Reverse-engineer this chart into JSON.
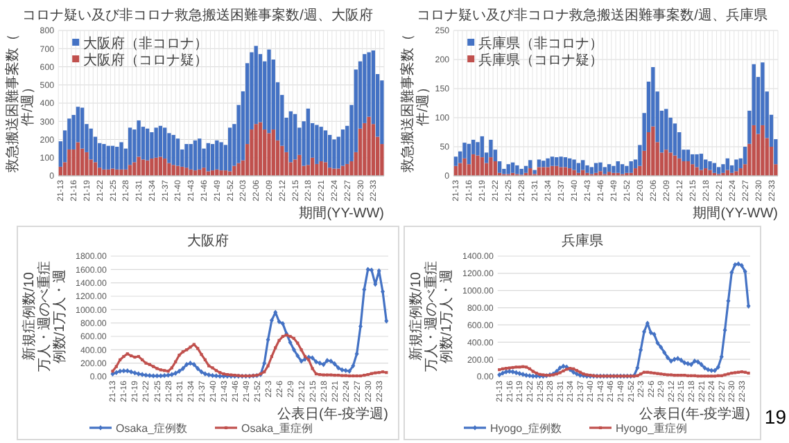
{
  "chart_data": [
    {
      "type": "bar",
      "stacked": true,
      "title": "コロナ疑い及び非コロナ救急搬送困難事案数/週、大阪府",
      "xlabel": "期間(YY-WW)",
      "ylabel": "救急搬送困難事案数（件/週）",
      "legend": "top left",
      "grid": true,
      "ylim": [
        0,
        800
      ],
      "yticks": [
        0,
        100,
        200,
        300,
        400,
        500,
        600,
        700,
        800
      ],
      "categories": [
        "21-13",
        null,
        null,
        "21-16",
        null,
        null,
        "21-19",
        null,
        null,
        "21-22",
        null,
        null,
        "21-25",
        null,
        null,
        "21-28",
        null,
        null,
        "21-31",
        null,
        null,
        "21-34",
        null,
        null,
        "21-37",
        null,
        null,
        "21-40",
        null,
        null,
        "21-43",
        null,
        null,
        "21-46",
        null,
        null,
        "21-49",
        null,
        null,
        "21-52",
        null,
        null,
        "22-03",
        null,
        null,
        "22-06",
        null,
        null,
        "22-09",
        null,
        null,
        "22-12",
        null,
        null,
        "22-15",
        null,
        null,
        "22-18",
        null,
        null,
        "22-21",
        null,
        null,
        "22-24",
        null,
        null,
        "22-27",
        null,
        null,
        "22-30",
        null,
        null,
        "22-33",
        null,
        null
      ],
      "series": [
        {
          "name": "大阪府（コロナ疑）",
          "color": "#c0504d",
          "values": [
            50,
            75,
            145,
            145,
            185,
            150,
            130,
            90,
            75,
            45,
            35,
            35,
            40,
            35,
            35,
            35,
            60,
            75,
            105,
            90,
            85,
            95,
            100,
            105,
            95,
            70,
            60,
            55,
            50,
            45,
            35,
            30,
            35,
            45,
            25,
            30,
            35,
            30,
            30,
            25,
            55,
            70,
            85,
            175,
            255,
            285,
            295,
            255,
            235,
            255,
            195,
            165,
            130,
            75,
            90,
            115,
            55,
            60,
            100,
            65,
            80,
            75,
            45,
            40,
            40,
            55,
            65,
            80,
            130,
            260,
            290,
            325,
            285,
            215,
            175
          ]
        },
        {
          "name": "大阪府（非コロナ）",
          "color": "#4472c4",
          "values": [
            140,
            175,
            170,
            190,
            195,
            225,
            155,
            170,
            140,
            135,
            140,
            130,
            125,
            125,
            150,
            115,
            205,
            180,
            200,
            180,
            175,
            145,
            165,
            170,
            170,
            165,
            165,
            150,
            95,
            130,
            140,
            165,
            170,
            105,
            155,
            145,
            160,
            155,
            140,
            240,
            230,
            320,
            380,
            445,
            425,
            430,
            375,
            375,
            460,
            385,
            320,
            280,
            190,
            280,
            250,
            150,
            245,
            310,
            190,
            215,
            190,
            175,
            180,
            160,
            175,
            200,
            210,
            310,
            455,
            370,
            380,
            355,
            405,
            345,
            350
          ]
        }
      ]
    },
    {
      "type": "bar",
      "stacked": true,
      "title": "コロナ疑い及び非コロナ救急搬送困難事案数/週、兵庫県",
      "xlabel": "期間(YY-WW)",
      "ylabel": "救急搬送困難事案数（件/週）",
      "legend": "top left",
      "grid": true,
      "ylim": [
        0,
        250
      ],
      "yticks": [
        0,
        50,
        100,
        150,
        200,
        250
      ],
      "categories": [
        "21-13",
        null,
        null,
        "21-16",
        null,
        null,
        "21-19",
        null,
        null,
        "21-22",
        null,
        null,
        "21-25",
        null,
        null,
        "21-28",
        null,
        null,
        "21-31",
        null,
        null,
        "21-34",
        null,
        null,
        "21-37",
        null,
        null,
        "21-40",
        null,
        null,
        "21-43",
        null,
        null,
        "21-46",
        null,
        null,
        "21-49",
        null,
        null,
        "21-52",
        null,
        null,
        "22-03",
        null,
        null,
        "22-06",
        null,
        null,
        "22-09",
        null,
        null,
        "22-12",
        null,
        null,
        "22-15",
        null,
        null,
        "22-18",
        null,
        null,
        "22-21",
        null,
        null,
        "22-24",
        null,
        null,
        "22-27",
        null,
        null,
        "22-30",
        null,
        null,
        "22-33",
        null
      ],
      "series": [
        {
          "name": "兵庫県（コロナ疑）",
          "color": "#c0504d",
          "values": [
            17,
            22,
            30,
            20,
            37,
            35,
            32,
            22,
            32,
            25,
            5,
            3,
            3,
            5,
            3,
            2,
            5,
            13,
            3,
            15,
            15,
            15,
            17,
            17,
            15,
            15,
            13,
            10,
            5,
            10,
            5,
            3,
            5,
            8,
            3,
            7,
            5,
            5,
            3,
            5,
            5,
            13,
            17,
            43,
            75,
            85,
            58,
            40,
            45,
            40,
            35,
            30,
            25,
            25,
            20,
            15,
            10,
            13,
            10,
            5,
            3,
            5,
            10,
            5,
            8,
            13,
            20,
            55,
            87,
            72,
            87,
            65,
            50,
            20
          ]
        },
        {
          "name": "兵庫県（非コロナ）",
          "color": "#4472c4",
          "values": [
            16,
            20,
            27,
            35,
            25,
            23,
            36,
            18,
            30,
            20,
            20,
            9,
            17,
            18,
            15,
            10,
            12,
            14,
            7,
            13,
            11,
            15,
            16,
            15,
            18,
            17,
            17,
            18,
            17,
            17,
            13,
            12,
            17,
            15,
            12,
            13,
            12,
            20,
            17,
            12,
            20,
            15,
            36,
            65,
            87,
            102,
            87,
            72,
            70,
            60,
            55,
            45,
            20,
            20,
            17,
            22,
            28,
            15,
            15,
            17,
            12,
            15,
            20,
            13,
            20,
            17,
            30,
            57,
            105,
            98,
            108,
            80,
            55,
            43
          ]
        }
      ]
    },
    {
      "type": "line",
      "title": "大阪府",
      "xlabel": "公表日(年-疫学週)",
      "ylabel": "新規症例数/10万人・週のべ重症例数/1万人・週",
      "legend": "bottom",
      "grid": "y",
      "ylim": [
        0,
        1800
      ],
      "yticks": [
        {
          "value": 0,
          "label": "0.00"
        },
        {
          "value": 200,
          "label": "200.00"
        },
        {
          "value": 400,
          "label": "400.00"
        },
        {
          "value": 600,
          "label": "600.00"
        },
        {
          "value": 800,
          "label": "800.00"
        },
        {
          "value": 1000,
          "label": "1000.00"
        },
        {
          "value": 1200,
          "label": "1200.00"
        },
        {
          "value": 1400,
          "label": "1400.00"
        },
        {
          "value": 1600,
          "label": "1600.00"
        },
        {
          "value": 1800,
          "label": "1800.00"
        }
      ],
      "categories": [
        "21-13",
        null,
        null,
        "21-16",
        null,
        null,
        "21-19",
        null,
        null,
        "21-22",
        null,
        null,
        "21-25",
        null,
        null,
        "21-28",
        null,
        null,
        "21-31",
        null,
        null,
        "21-34",
        null,
        null,
        "21-37",
        null,
        null,
        "21-40",
        null,
        null,
        "21-43",
        null,
        null,
        "21-46",
        null,
        null,
        "21-49",
        null,
        null,
        "21-52",
        null,
        null,
        "22-3",
        null,
        null,
        "22-6",
        null,
        null,
        "22-9",
        null,
        null,
        "22-12",
        null,
        null,
        "22-15",
        null,
        null,
        "22-18",
        null,
        null,
        "22-21",
        null,
        null,
        "22-24",
        null,
        null,
        "22-27",
        null,
        null,
        "22-30",
        null,
        null,
        "22-33",
        null,
        null
      ],
      "series": [
        {
          "name": "Osaka_症例数",
          "color": "#4472c4",
          "marker": "diamond",
          "values": [
            40,
            60,
            80,
            85,
            85,
            70,
            55,
            40,
            30,
            20,
            15,
            10,
            10,
            10,
            15,
            20,
            30,
            50,
            80,
            120,
            180,
            200,
            180,
            120,
            70,
            40,
            25,
            15,
            10,
            5,
            5,
            5,
            5,
            5,
            5,
            5,
            5,
            5,
            10,
            15,
            30,
            200,
            550,
            840,
            960,
            820,
            790,
            640,
            510,
            400,
            310,
            230,
            260,
            290,
            280,
            220,
            200,
            180,
            240,
            230,
            190,
            130,
            100,
            90,
            80,
            160,
            340,
            750,
            1300,
            1600,
            1590,
            1380,
            1580,
            1270,
            830
          ]
        },
        {
          "name": "Osaka_重症例",
          "color": "#c0504d",
          "marker": "square",
          "values": [
            80,
            150,
            250,
            300,
            340,
            310,
            290,
            300,
            250,
            200,
            180,
            150,
            120,
            100,
            90,
            80,
            130,
            220,
            320,
            370,
            400,
            440,
            480,
            420,
            330,
            250,
            160,
            130,
            90,
            60,
            40,
            30,
            25,
            20,
            15,
            10,
            10,
            10,
            15,
            20,
            40,
            70,
            160,
            300,
            430,
            540,
            600,
            620,
            600,
            570,
            500,
            400,
            300,
            250,
            120,
            40,
            30,
            25,
            25,
            25,
            20,
            20,
            15,
            15,
            10,
            10,
            10,
            10,
            20,
            30,
            45,
            55,
            60,
            70,
            60
          ]
        }
      ]
    },
    {
      "type": "line",
      "title": "兵庫県",
      "xlabel": "公表日(年-疫学週)",
      "ylabel": "新規症例数/10万人・週のべ重症例数/1万人・週",
      "legend": "bottom",
      "grid": "y",
      "ylim": [
        0,
        1400
      ],
      "yticks": [
        {
          "value": 0,
          "label": "0.00"
        },
        {
          "value": 200,
          "label": "200.00"
        },
        {
          "value": 400,
          "label": "400.00"
        },
        {
          "value": 600,
          "label": "600.00"
        },
        {
          "value": 800,
          "label": "800.00"
        },
        {
          "value": 1000,
          "label": "1000.00"
        },
        {
          "value": 1200,
          "label": "1200.00"
        },
        {
          "value": 1400,
          "label": "1400.00"
        }
      ],
      "categories": [
        "21-13",
        null,
        null,
        "21-16",
        null,
        null,
        "21-19",
        null,
        null,
        "21-22",
        null,
        null,
        "21-25",
        null,
        null,
        "21-28",
        null,
        null,
        "21-31",
        null,
        null,
        "21-34",
        null,
        null,
        "21-37",
        null,
        null,
        "21-40",
        null,
        null,
        "21-43",
        null,
        null,
        "21-46",
        null,
        null,
        "21-49",
        null,
        null,
        "21-52",
        null,
        null,
        "22-3",
        null,
        null,
        "22-6",
        null,
        null,
        "22-9",
        null,
        null,
        "22-12",
        null,
        null,
        "22-15",
        null,
        null,
        "22-18",
        null,
        null,
        "22-21",
        null,
        null,
        "22-24",
        null,
        null,
        "22-27",
        null,
        null,
        "22-30",
        null,
        null,
        "22-33",
        null,
        null
      ],
      "annotations": [
        "19"
      ],
      "series": [
        {
          "name": "Hyogo_症例数",
          "color": "#4472c4",
          "marker": "diamond",
          "values": [
            20,
            40,
            55,
            60,
            55,
            45,
            35,
            25,
            15,
            10,
            5,
            5,
            5,
            5,
            10,
            20,
            30,
            60,
            100,
            120,
            110,
            80,
            50,
            30,
            15,
            10,
            5,
            5,
            5,
            5,
            5,
            5,
            5,
            5,
            5,
            5,
            5,
            5,
            5,
            5,
            10,
            100,
            310,
            520,
            620,
            510,
            490,
            390,
            340,
            280,
            220,
            180,
            200,
            210,
            190,
            160,
            150,
            140,
            180,
            170,
            140,
            100,
            80,
            70,
            70,
            110,
            230,
            540,
            880,
            1210,
            1300,
            1310,
            1290,
            1220,
            820
          ]
        },
        {
          "name": "Hyogo_重症例",
          "color": "#c0504d",
          "marker": "square",
          "values": [
            80,
            90,
            95,
            100,
            105,
            110,
            110,
            115,
            110,
            90,
            60,
            40,
            25,
            20,
            15,
            15,
            20,
            30,
            45,
            65,
            85,
            95,
            90,
            70,
            50,
            30,
            20,
            15,
            10,
            5,
            5,
            5,
            5,
            5,
            5,
            5,
            5,
            5,
            5,
            5,
            5,
            10,
            30,
            50,
            50,
            45,
            40,
            35,
            30,
            25,
            20,
            20,
            15,
            15,
            15,
            15,
            10,
            10,
            10,
            5,
            5,
            5,
            5,
            5,
            5,
            10,
            10,
            20,
            30,
            40,
            45,
            50,
            55,
            50,
            40
          ]
        }
      ]
    }
  ]
}
